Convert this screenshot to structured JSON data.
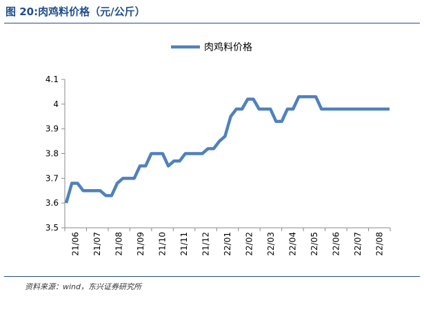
{
  "title": "图 20:肉鸡料价格（元/公斤）",
  "source": "资料来源：wind，东兴证券研究所",
  "colors": {
    "line": "#4f81bd",
    "title": "#1f4e8c",
    "axis": "#888888"
  },
  "chart_data": {
    "type": "line",
    "title": "图 20:肉鸡料价格（元/公斤）",
    "legend": "top-center",
    "grid": false,
    "ylim": [
      3.5,
      4.1
    ],
    "yticks": [
      "3.5",
      "3.6",
      "3.7",
      "3.8",
      "3.9",
      "4",
      "4.1"
    ],
    "xticks": [
      "21/06",
      "21/07",
      "21/08",
      "21/09",
      "21/10",
      "21/11",
      "21/12",
      "22/01",
      "22/02",
      "22/03",
      "22/04",
      "22/05",
      "22/06",
      "22/07",
      "22/08"
    ],
    "x": [
      "21/06",
      "21/06",
      "21/06",
      "21/07",
      "21/07",
      "21/07",
      "21/07",
      "21/08",
      "21/08",
      "21/08",
      "21/08",
      "21/09",
      "21/09",
      "21/09",
      "21/09",
      "21/10",
      "21/10",
      "21/10",
      "21/10",
      "21/11",
      "21/11",
      "21/11",
      "21/11",
      "21/12",
      "21/12",
      "21/12",
      "21/12",
      "22/01",
      "22/01",
      "22/01",
      "22/01",
      "22/02",
      "22/02",
      "22/02",
      "22/02",
      "22/03",
      "22/03",
      "22/03",
      "22/03",
      "22/04",
      "22/04",
      "22/04",
      "22/04",
      "22/05",
      "22/05",
      "22/05",
      "22/05",
      "22/06",
      "22/06",
      "22/06",
      "22/06",
      "22/07",
      "22/07",
      "22/07",
      "22/07",
      "22/08",
      "22/08",
      "22/08"
    ],
    "series": [
      {
        "name": "肉鸡料价格",
        "values": [
          3.6,
          3.68,
          3.68,
          3.65,
          3.65,
          3.65,
          3.65,
          3.63,
          3.63,
          3.68,
          3.7,
          3.7,
          3.7,
          3.75,
          3.75,
          3.8,
          3.8,
          3.8,
          3.75,
          3.77,
          3.77,
          3.8,
          3.8,
          3.8,
          3.8,
          3.82,
          3.82,
          3.85,
          3.87,
          3.95,
          3.98,
          3.98,
          4.02,
          4.02,
          3.98,
          3.98,
          3.98,
          3.93,
          3.93,
          3.98,
          3.98,
          4.03,
          4.03,
          4.03,
          4.03,
          3.98,
          3.98,
          3.98,
          3.98,
          3.98,
          3.98,
          3.98,
          3.98,
          3.98,
          3.98,
          3.98,
          3.98,
          3.98
        ]
      }
    ]
  }
}
